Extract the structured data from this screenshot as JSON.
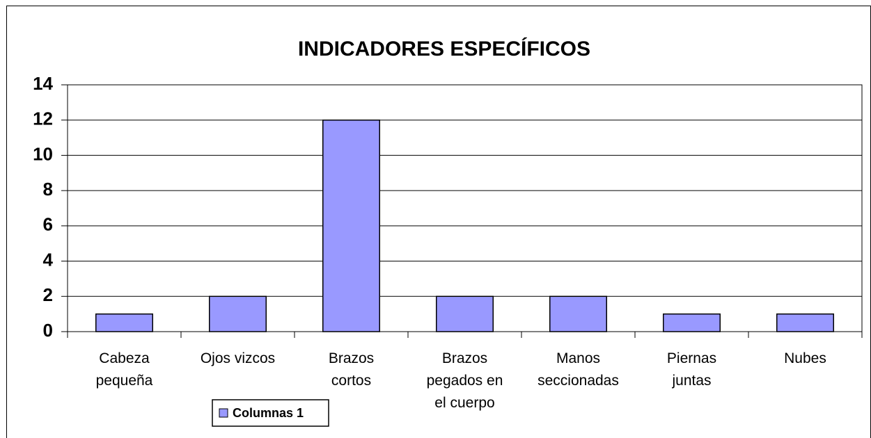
{
  "chart_data": {
    "type": "bar",
    "title": "INDICADORES ESPECÍFICOS",
    "categories": [
      "Cabeza pequeña",
      "Ojos vizcos",
      "Brazos cortos",
      "Brazos pegados en el cuerpo",
      "Manos seccionadas",
      "Piernas juntas",
      "Nubes"
    ],
    "series": [
      {
        "name": "Columnas 1",
        "color": "#9999ff",
        "values": [
          1,
          2,
          12,
          2,
          2,
          1,
          1
        ]
      }
    ],
    "ylim": [
      0,
      14
    ],
    "yticks": [
      0,
      2,
      4,
      6,
      8,
      10,
      12,
      14
    ],
    "grid": true,
    "legend": "bottom"
  }
}
